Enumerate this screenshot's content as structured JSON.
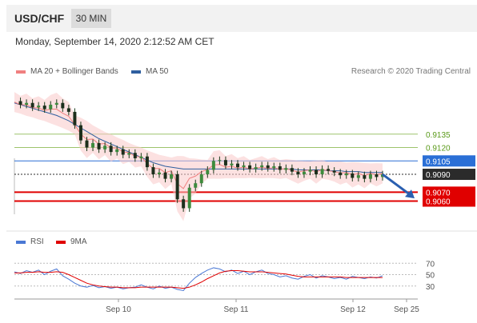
{
  "header": {
    "symbol": "USD/CHF",
    "timeframe": "30 MIN"
  },
  "datetime": "Monday, September 14, 2020 2:12:52 AM CET",
  "legend_main": [
    {
      "label": "MA 20 + Bollinger Bands",
      "color": "#f08080"
    },
    {
      "label": "MA 50",
      "color": "#2f5f9f"
    }
  ],
  "legend_rsi": [
    {
      "label": "RSI",
      "color": "#4a78d4"
    },
    {
      "label": "9MA",
      "color": "#e00000"
    }
  ],
  "credit": "Research © 2020 Trading Central",
  "chart_data": {
    "type": "line",
    "title": "USD/CHF",
    "price_range": [
      0.903,
      0.9185
    ],
    "levels": [
      {
        "value": 0.9135,
        "label": "0.9135",
        "kind": "line",
        "color": "#9dc46b",
        "text_color": "#5a9a1a"
      },
      {
        "value": 0.912,
        "label": "0.9120",
        "kind": "line",
        "color": "#9dc46b",
        "text_color": "#5a9a1a"
      },
      {
        "value": 0.9105,
        "label": "0.9105",
        "kind": "tag",
        "color": "#2a6fd6"
      },
      {
        "value": 0.909,
        "label": "0.9090",
        "kind": "tag",
        "color": "#2b2b2b"
      },
      {
        "value": 0.907,
        "label": "0.9070",
        "kind": "tag",
        "color": "#e00000"
      },
      {
        "value": 0.906,
        "label": "0.9060",
        "kind": "tag",
        "color": "#e00000"
      }
    ],
    "x_ticks": [
      "Sep 10",
      "Sep 11",
      "Sep 12",
      "Sep 25"
    ],
    "price_series": [
      0.9172,
      0.9168,
      0.917,
      0.9165,
      0.9167,
      0.9163,
      0.9168,
      0.917,
      0.9164,
      0.916,
      0.9145,
      0.9128,
      0.912,
      0.9125,
      0.9118,
      0.9122,
      0.9115,
      0.9118,
      0.9112,
      0.9114,
      0.9108,
      0.911,
      0.9098,
      0.909,
      0.9092,
      0.9085,
      0.909,
      0.9062,
      0.9052,
      0.9075,
      0.908,
      0.909,
      0.9095,
      0.9105,
      0.9106,
      0.91,
      0.9102,
      0.9098,
      0.91,
      0.9096,
      0.9098,
      0.91,
      0.9097,
      0.9099,
      0.9095,
      0.9097,
      0.9093,
      0.909,
      0.9093,
      0.9095,
      0.909,
      0.9096,
      0.9094,
      0.9092,
      0.9089,
      0.9091,
      0.9086,
      0.9089,
      0.9085,
      0.909,
      0.9087,
      0.909
    ],
    "ma50_series": [
      0.917,
      0.9168,
      0.9166,
      0.9164,
      0.9162,
      0.916,
      0.9158,
      0.9156,
      0.9153,
      0.915,
      0.9146,
      0.9142,
      0.9138,
      0.9134,
      0.913,
      0.9127,
      0.9124,
      0.9121,
      0.9118,
      0.9115,
      0.9112,
      0.9109,
      0.9106,
      0.9103,
      0.9101,
      0.9099,
      0.9098,
      0.9097,
      0.9096,
      0.9096,
      0.9096,
      0.9096,
      0.9096,
      0.9096,
      0.9096,
      0.9096,
      0.9096,
      0.9096,
      0.9096,
      0.9096,
      0.9096,
      0.9096,
      0.9096,
      0.9096,
      0.9096,
      0.9096,
      0.9096,
      0.9095,
      0.9095,
      0.9095,
      0.9095,
      0.9095,
      0.9094,
      0.9094,
      0.9094,
      0.9093,
      0.9093,
      0.9093,
      0.9092,
      0.9092,
      0.9092,
      0.9092
    ],
    "forecast": {
      "from": 0.909,
      "to": 0.9063
    },
    "rsi": {
      "range": [
        10,
        90
      ],
      "levels": [
        70,
        50,
        30
      ],
      "rsi_series": [
        55,
        52,
        57,
        54,
        58,
        50,
        56,
        60,
        48,
        42,
        35,
        30,
        28,
        31,
        27,
        29,
        26,
        28,
        25,
        27,
        28,
        32,
        28,
        25,
        30,
        26,
        28,
        24,
        22,
        35,
        45,
        52,
        58,
        62,
        60,
        55,
        58,
        52,
        56,
        50,
        55,
        58,
        52,
        50,
        46,
        48,
        44,
        42,
        47,
        50,
        44,
        48,
        46,
        43,
        45,
        42,
        47,
        45,
        43,
        46,
        44,
        48
      ],
      "ma9_series": [
        53,
        53,
        54,
        54,
        55,
        54,
        54,
        55,
        54,
        50,
        45,
        40,
        35,
        32,
        30,
        29,
        28,
        28,
        27,
        27,
        27,
        28,
        28,
        28,
        28,
        28,
        28,
        27,
        26,
        28,
        32,
        37,
        43,
        48,
        53,
        56,
        57,
        57,
        56,
        55,
        55,
        55,
        54,
        53,
        52,
        51,
        49,
        47,
        46,
        46,
        46,
        46,
        46,
        46,
        46,
        45,
        45,
        45,
        45,
        45,
        45,
        45
      ]
    }
  }
}
